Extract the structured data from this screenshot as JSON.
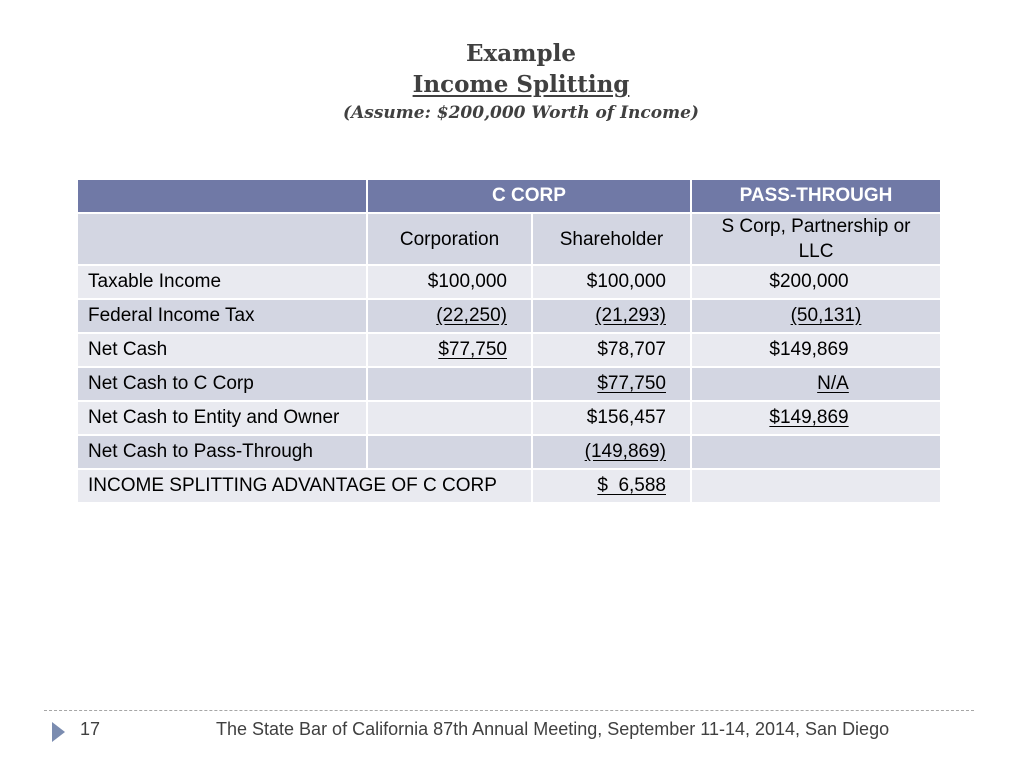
{
  "title": {
    "line1": "Example",
    "line2": "Income Splitting",
    "line3": "(Assume:  $200,000 Worth of Income)"
  },
  "table": {
    "header": {
      "ccorp": "C CORP",
      "passthrough": "PASS-THROUGH"
    },
    "subheader": {
      "corporation": "Corporation",
      "shareholder": "Shareholder",
      "passthrough": "S Corp, Partnership or LLC"
    },
    "rows": [
      {
        "label": "Taxable Income",
        "corporation": "$100,000",
        "shareholder": "$100,000",
        "passthrough": "$200,000"
      },
      {
        "label": "Federal Income Tax",
        "corporation": "(22,250)",
        "shareholder": "(21,293)",
        "passthrough": "(50,131)"
      },
      {
        "label": "Net Cash",
        "corporation": "$77,750",
        "shareholder": "$78,707",
        "passthrough": "$149,869"
      },
      {
        "label": "Net Cash to C Corp",
        "corporation": "",
        "shareholder": "$77,750",
        "passthrough": "N/A"
      },
      {
        "label": "Net Cash to Entity and Owner",
        "corporation": "",
        "shareholder": "$156,457",
        "passthrough": "$149,869"
      },
      {
        "label": "Net Cash to Pass-Through",
        "corporation": "",
        "shareholder": "(149,869)",
        "passthrough": ""
      }
    ],
    "advantage": {
      "label": "INCOME SPLITTING ADVANTAGE OF C CORP",
      "value": "$  6,588"
    }
  },
  "footer": {
    "slide_number": "17",
    "text": "The State Bar of California 87th Annual Meeting,  September 11-14,  2014,  San Diego"
  },
  "colors": {
    "header_bg": "#7079a6",
    "row_light": "#e9eaf0",
    "row_dark": "#d3d6e2",
    "accent_arrow": "#7b8cb0"
  }
}
